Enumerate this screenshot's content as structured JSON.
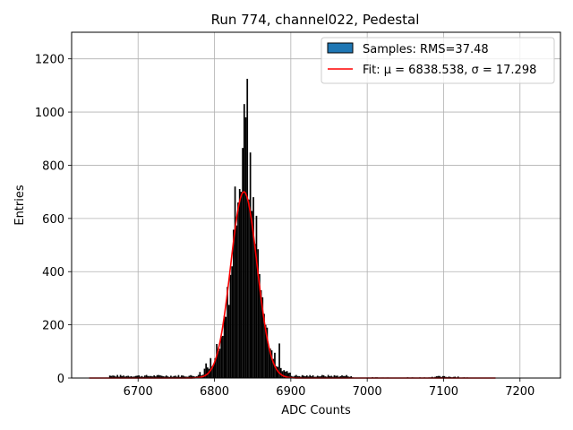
{
  "chart_data": {
    "type": "bar",
    "title": "Run 774, channel022, Pedestal",
    "xlabel": "ADC Counts",
    "ylabel": "Entries",
    "xlim": [
      6613,
      7253
    ],
    "ylim": [
      0,
      1300
    ],
    "xticks": [
      6700,
      6800,
      6900,
      7000,
      7100,
      7200
    ],
    "yticks": [
      0,
      200,
      400,
      600,
      800,
      1000,
      1200
    ],
    "grid": true,
    "legend_position": "top-right",
    "histogram": {
      "name": "Samples: RMS=37.48",
      "bin_width": 2,
      "fill_color": "#000000",
      "legend_swatch_color": "#1f77b4",
      "spikes": [
        {
          "x": 6842,
          "value": 1125
        },
        {
          "x": 6838,
          "value": 1030
        },
        {
          "x": 6836,
          "value": 865
        },
        {
          "x": 6846,
          "value": 848
        },
        {
          "x": 6840,
          "value": 980
        },
        {
          "x": 6834,
          "value": 700
        },
        {
          "x": 6826,
          "value": 720
        },
        {
          "x": 6850,
          "value": 680
        },
        {
          "x": 6830,
          "value": 660
        },
        {
          "x": 6854,
          "value": 610
        },
        {
          "x": 6822,
          "value": 420
        },
        {
          "x": 6818,
          "value": 275
        },
        {
          "x": 6814,
          "value": 230
        },
        {
          "x": 6860,
          "value": 330
        },
        {
          "x": 6866,
          "value": 200
        },
        {
          "x": 6802,
          "value": 128
        },
        {
          "x": 6806,
          "value": 110
        },
        {
          "x": 6884,
          "value": 130
        },
        {
          "x": 6878,
          "value": 95
        },
        {
          "x": 6794,
          "value": 75
        },
        {
          "x": 6788,
          "value": 55
        }
      ]
    },
    "fit": {
      "name": "Fit: μ = 6838.538, σ = 17.298",
      "mu": 6838.538,
      "sigma": 17.298,
      "amplitude": 700,
      "x_range": [
        6636,
        7168
      ],
      "color": "#ff0000"
    }
  }
}
